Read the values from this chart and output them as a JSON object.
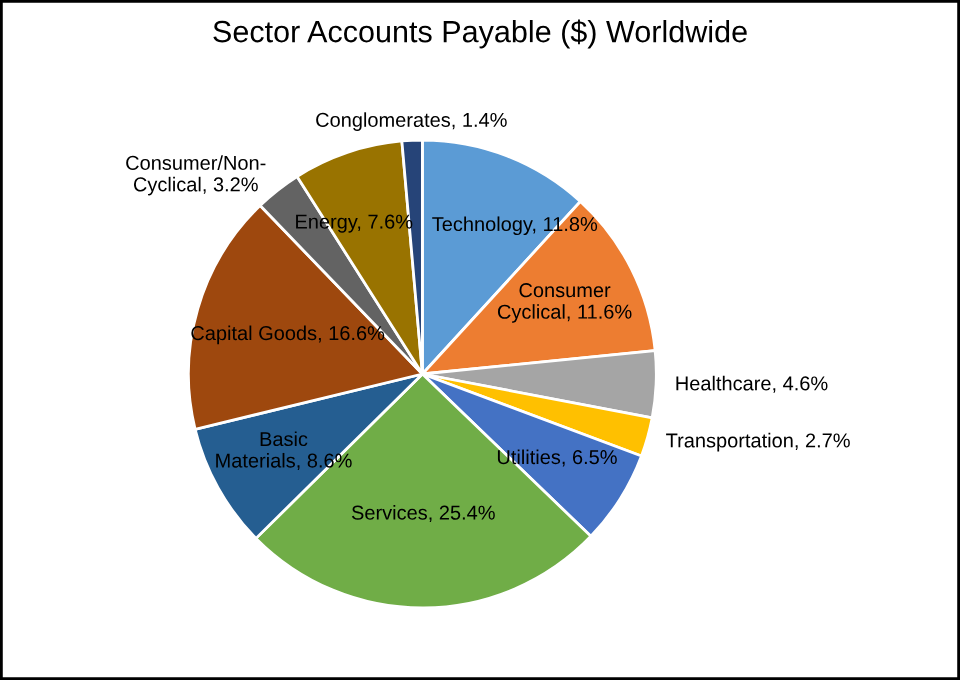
{
  "chart_data": {
    "type": "pie",
    "title": "Sector Accounts Payable ($) Worldwide",
    "categories": [
      "Technology",
      "Consumer Cyclical",
      "Healthcare",
      "Transportation",
      "Utilities",
      "Services",
      "Basic Materials",
      "Capital Goods",
      "Consumer/Non-Cyclical",
      "Energy",
      "Conglomerates"
    ],
    "values": [
      11.8,
      11.6,
      4.6,
      2.7,
      6.5,
      25.4,
      8.6,
      16.6,
      3.2,
      7.6,
      1.4
    ],
    "value_labels": [
      "11.8%",
      "11.6%",
      "4.6%",
      "2.7%",
      "6.5%",
      "25.4%",
      "8.6%",
      "16.6%",
      "3.2%",
      "7.6%",
      "1.4%"
    ],
    "colors": [
      "#5b9bd5",
      "#ed7d31",
      "#a5a5a5",
      "#ffc000",
      "#4472c4",
      "#70ad47",
      "#255e91",
      "#9e480e",
      "#636363",
      "#997300",
      "#264478"
    ],
    "legend": false
  }
}
